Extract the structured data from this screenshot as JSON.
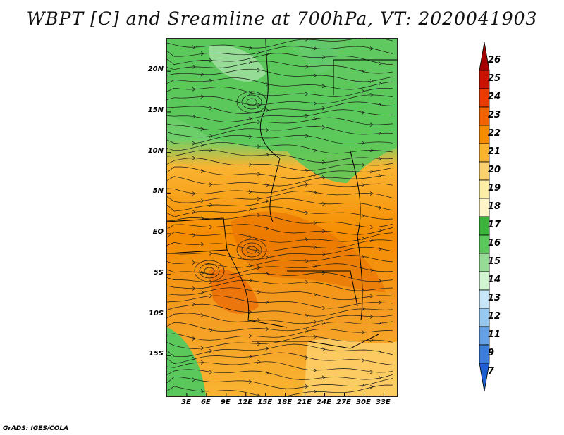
{
  "title": "WBPT [C] and Sreamline at 700hPa, VT: 2020041903",
  "footer": "GrADS: IGES/COLA",
  "map": {
    "lon_range": [
      0,
      35
    ],
    "lat_range": [
      -20,
      24
    ],
    "y_ticks": [
      {
        "lat": 20,
        "label": "20N"
      },
      {
        "lat": 15,
        "label": "15N"
      },
      {
        "lat": 10,
        "label": "10N"
      },
      {
        "lat": 5,
        "label": "5N"
      },
      {
        "lat": 0,
        "label": "EQ"
      },
      {
        "lat": -5,
        "label": "5S"
      },
      {
        "lat": -10,
        "label": "10S"
      },
      {
        "lat": -15,
        "label": "15S"
      }
    ],
    "x_ticks": [
      {
        "lon": 3,
        "label": "3E"
      },
      {
        "lon": 6,
        "label": "6E"
      },
      {
        "lon": 9,
        "label": "9E"
      },
      {
        "lon": 12,
        "label": "12E"
      },
      {
        "lon": 15,
        "label": "15E"
      },
      {
        "lon": 18,
        "label": "18E"
      },
      {
        "lon": 21,
        "label": "21E"
      },
      {
        "lon": 24,
        "label": "24E"
      },
      {
        "lon": 27,
        "label": "27E"
      },
      {
        "lon": 30,
        "label": "30E"
      },
      {
        "lon": 33,
        "label": "33E"
      }
    ]
  },
  "colorbar": {
    "labels": [
      "26",
      "25",
      "24",
      "23",
      "22",
      "21",
      "20",
      "19",
      "18",
      "17",
      "16",
      "15",
      "14",
      "13",
      "12",
      "11",
      "9",
      "7"
    ],
    "colors": [
      "#a50000",
      "#c81400",
      "#e63c00",
      "#f06400",
      "#f58c00",
      "#fab432",
      "#fcd26e",
      "#fdeea5",
      "#fff5c8",
      "#3cb43c",
      "#5ac85a",
      "#96dc96",
      "#d2f5d2",
      "#c8e6fa",
      "#96c8f0",
      "#64a0e6",
      "#3c7ddc",
      "#1e5fd2"
    ]
  }
}
